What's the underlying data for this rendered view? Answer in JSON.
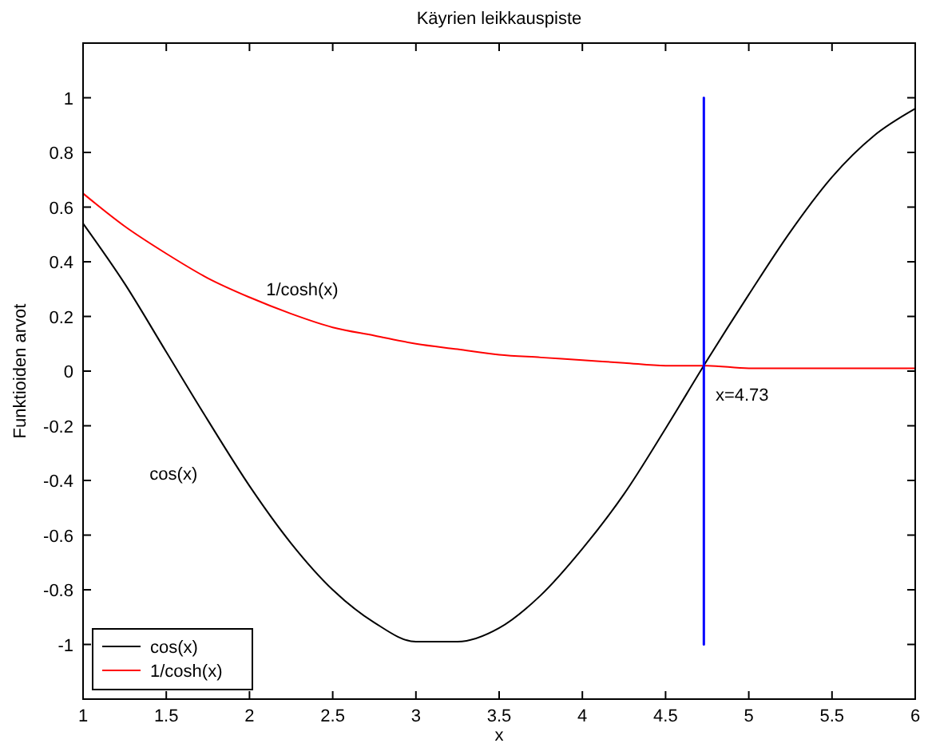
{
  "chart_data": {
    "type": "line",
    "title": "Käyrien leikkauspiste",
    "xlabel": "x",
    "ylabel": "Funktioiden arvot",
    "x": [
      1,
      1.25,
      1.5,
      1.75,
      2,
      2.25,
      2.5,
      2.75,
      3,
      3.25,
      3.5,
      3.75,
      4,
      4.25,
      4.5,
      4.75,
      5,
      5.25,
      5.5,
      5.75,
      6
    ],
    "series": [
      {
        "name": "cos(x)",
        "color": "#000000",
        "values": [
          0.54,
          0.32,
          0.07,
          -0.18,
          -0.42,
          -0.63,
          -0.8,
          -0.92,
          -0.99,
          -0.99,
          -0.94,
          -0.82,
          -0.65,
          -0.45,
          -0.21,
          0.04,
          0.28,
          0.51,
          0.71,
          0.86,
          0.96
        ]
      },
      {
        "name": "1/cosh(x)",
        "color": "#ff0000",
        "values": [
          0.65,
          0.53,
          0.43,
          0.34,
          0.27,
          0.21,
          0.16,
          0.13,
          0.1,
          0.08,
          0.06,
          0.05,
          0.04,
          0.03,
          0.02,
          0.02,
          0.01,
          0.01,
          0.01,
          0.01,
          0.01
        ]
      },
      {
        "color": "#0000ff",
        "x": [
          4.73,
          4.73
        ],
        "values": [
          -1,
          1
        ]
      }
    ],
    "annotations": [
      "1/cosh(x)",
      "cos(x)",
      "x=4.73"
    ],
    "xlim": [
      1,
      6
    ],
    "xticks": [
      1,
      1.5,
      2,
      2.5,
      3,
      3.5,
      4,
      4.5,
      5,
      5.5,
      6
    ],
    "ylim": [
      -1.2,
      1.2
    ],
    "yticks": [
      -1,
      -0.8,
      -0.6,
      -0.4,
      -0.2,
      0,
      0.2,
      0.4,
      0.6,
      0.8,
      1
    ],
    "grid": false,
    "legend": "bottom left",
    "marker": "none",
    "line_style": "solid"
  }
}
